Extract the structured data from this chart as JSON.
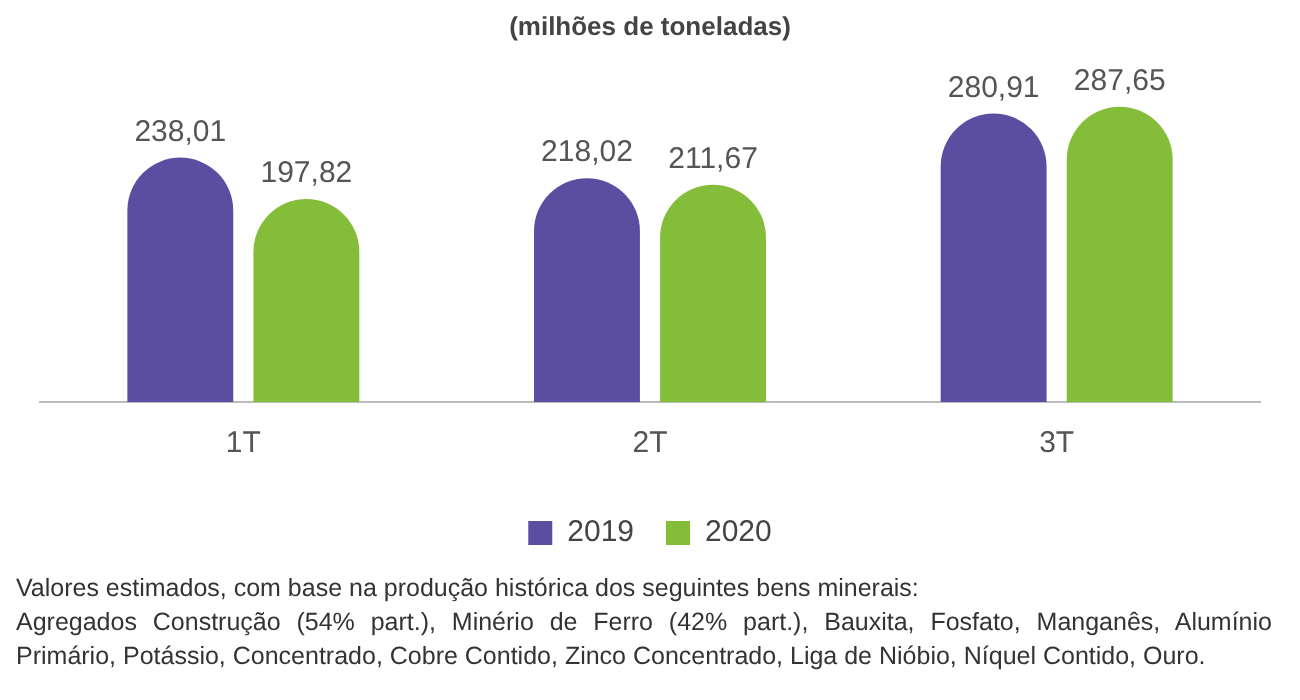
{
  "chart_data": {
    "type": "bar",
    "subtitle": "(milhões de toneladas)",
    "categories": [
      "1T",
      "2T",
      "3T"
    ],
    "series": [
      {
        "name": "2019",
        "color": "#5b4ea0",
        "values": [
          238.01,
          218.02,
          280.91
        ],
        "value_labels": [
          "238,01",
          "218,02",
          "280,91"
        ]
      },
      {
        "name": "2020",
        "color": "#84bd3a",
        "values": [
          197.82,
          211.67,
          287.65
        ],
        "value_labels": [
          "197,82",
          "211,67",
          "287,65"
        ]
      }
    ],
    "grid": false,
    "legend": "bottom",
    "tick_labels": "x",
    "annotations": [
      "Valores estimados, com base na produção histórica dos seguintes bens minerais:",
      "Agregados Construção (54% part.), Minério de Ferro (42% part.), Bauxita, Fosfato, Manganês, Alumínio Primário, Potássio, Concentrado, Cobre Contido, Zinco Concentrado, Liga de Nióbio, Níquel Contido, Ouro."
    ]
  }
}
